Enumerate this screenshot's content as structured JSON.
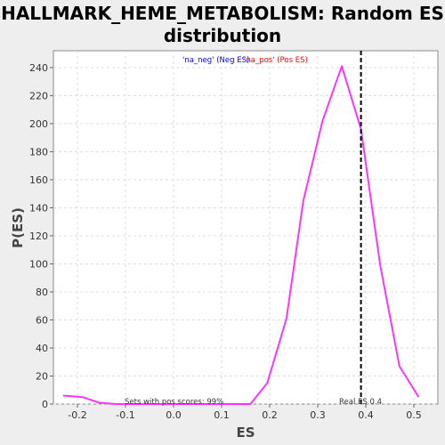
{
  "chart_data": {
    "type": "line",
    "title_line1": "HALLMARK_HEME_METABOLISM: Random ES",
    "title_line2": "distribution",
    "xlabel": "ES",
    "ylabel": "P(ES)",
    "xlim": [
      -0.25,
      0.55
    ],
    "ylim": [
      0,
      252
    ],
    "xticks": [
      -0.2,
      -0.1,
      0.0,
      0.1,
      0.2,
      0.3,
      0.4,
      0.5
    ],
    "xtick_labels": [
      "-0.2",
      "-0.1",
      "0.0",
      "0.1",
      "0.2",
      "0.3",
      "0.4",
      "0.5"
    ],
    "yticks": [
      0,
      20,
      40,
      60,
      80,
      100,
      120,
      140,
      160,
      180,
      200,
      220,
      240
    ],
    "grid": true,
    "legend": {
      "neg_label": "'na_neg' (Neg ES)",
      "pos_label": "'na_pos' (Pos ES)",
      "placement": "top-center"
    },
    "series": [
      {
        "color": "#ff33ff",
        "x": [
          -0.23,
          -0.19,
          -0.155,
          -0.12,
          -0.085,
          -0.05,
          -0.015,
          0.02,
          0.055,
          0.09,
          0.125,
          0.16,
          0.195,
          0.235,
          0.27,
          0.31,
          0.35,
          0.39,
          0.43,
          0.47,
          0.51
        ],
        "y": [
          6,
          5,
          1,
          0,
          0,
          0,
          0,
          0,
          0,
          0,
          0,
          0,
          15,
          61,
          145,
          202,
          241,
          196,
          99,
          27,
          5
        ]
      }
    ],
    "real_es": 0.39,
    "annotations": {
      "real_es_label": "Real ES 0.4",
      "pos_scores_label": "Sets with pos scores: 99%"
    },
    "colors": {
      "neg": "#0000ff",
      "pos": "#ff0000",
      "line": "#ff33ff",
      "real_es_line": "#000000"
    }
  }
}
